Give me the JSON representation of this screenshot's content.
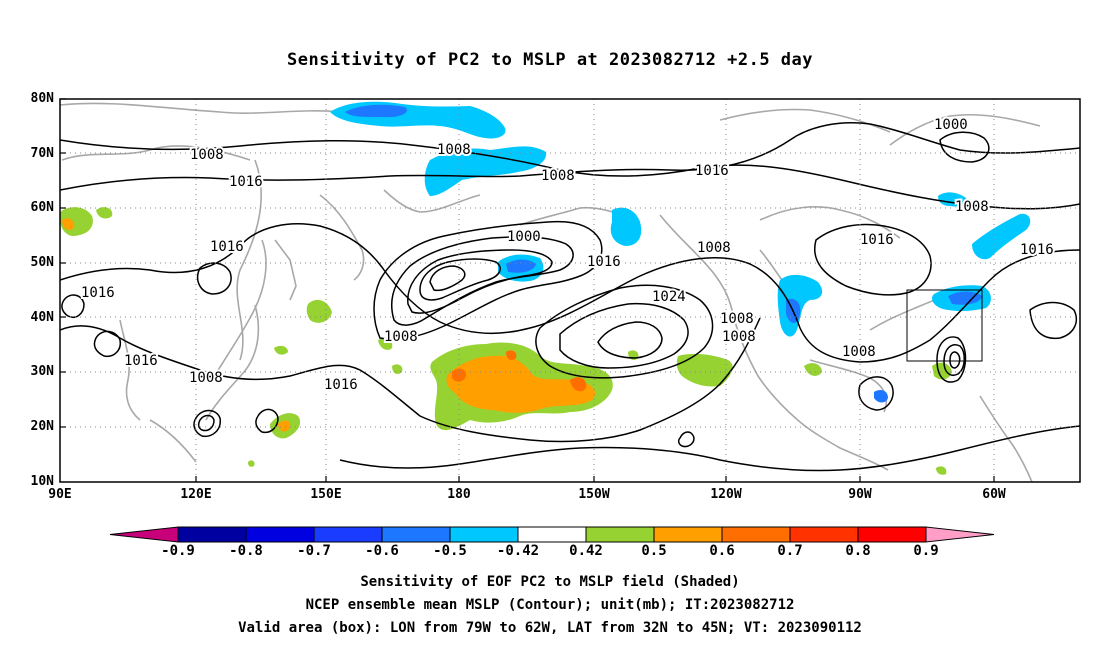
{
  "title": "Sensitivity of PC2 to MSLP at 2023082712 +2.5 day",
  "lat_labels": [
    "80N",
    "70N",
    "60N",
    "50N",
    "40N",
    "30N",
    "20N",
    "10N"
  ],
  "lon_labels": [
    "90E",
    "120E",
    "150E",
    "180",
    "150W",
    "120W",
    "90W",
    "60W"
  ],
  "contour_labels": [
    "1000",
    "1000",
    "1008",
    "1008",
    "1008",
    "1008",
    "1008",
    "1008",
    "1008",
    "1008",
    "1008",
    "1008",
    "1016",
    "1016",
    "1016",
    "1016",
    "1016",
    "1016",
    "1016",
    "1016",
    "1016",
    "1024"
  ],
  "colorbar": {
    "labels": [
      "-0.9",
      "-0.8",
      "-0.7",
      "-0.6",
      "-0.5",
      "-0.42",
      "0.42",
      "0.5",
      "0.6",
      "0.7",
      "0.8",
      "0.9"
    ],
    "colors": [
      "#0000a0",
      "#0000e0",
      "#1a3cff",
      "#1e78ff",
      "#00c8ff",
      "#ffffff",
      "#96d232",
      "#ff9f00",
      "#ff6e00",
      "#ff3200",
      "#ff0000"
    ],
    "under_color": "#c8007a",
    "over_color": "#ff9fc8"
  },
  "captions": {
    "line1": "Sensitivity of EOF PC2 to MSLP field (Shaded)",
    "line2": "NCEP ensemble mean MSLP (Contour); unit(mb); IT:2023082712",
    "line3": "Valid area (box): LON from 79W to 62W, LAT from 32N to 45N; VT: 2023090112"
  }
}
